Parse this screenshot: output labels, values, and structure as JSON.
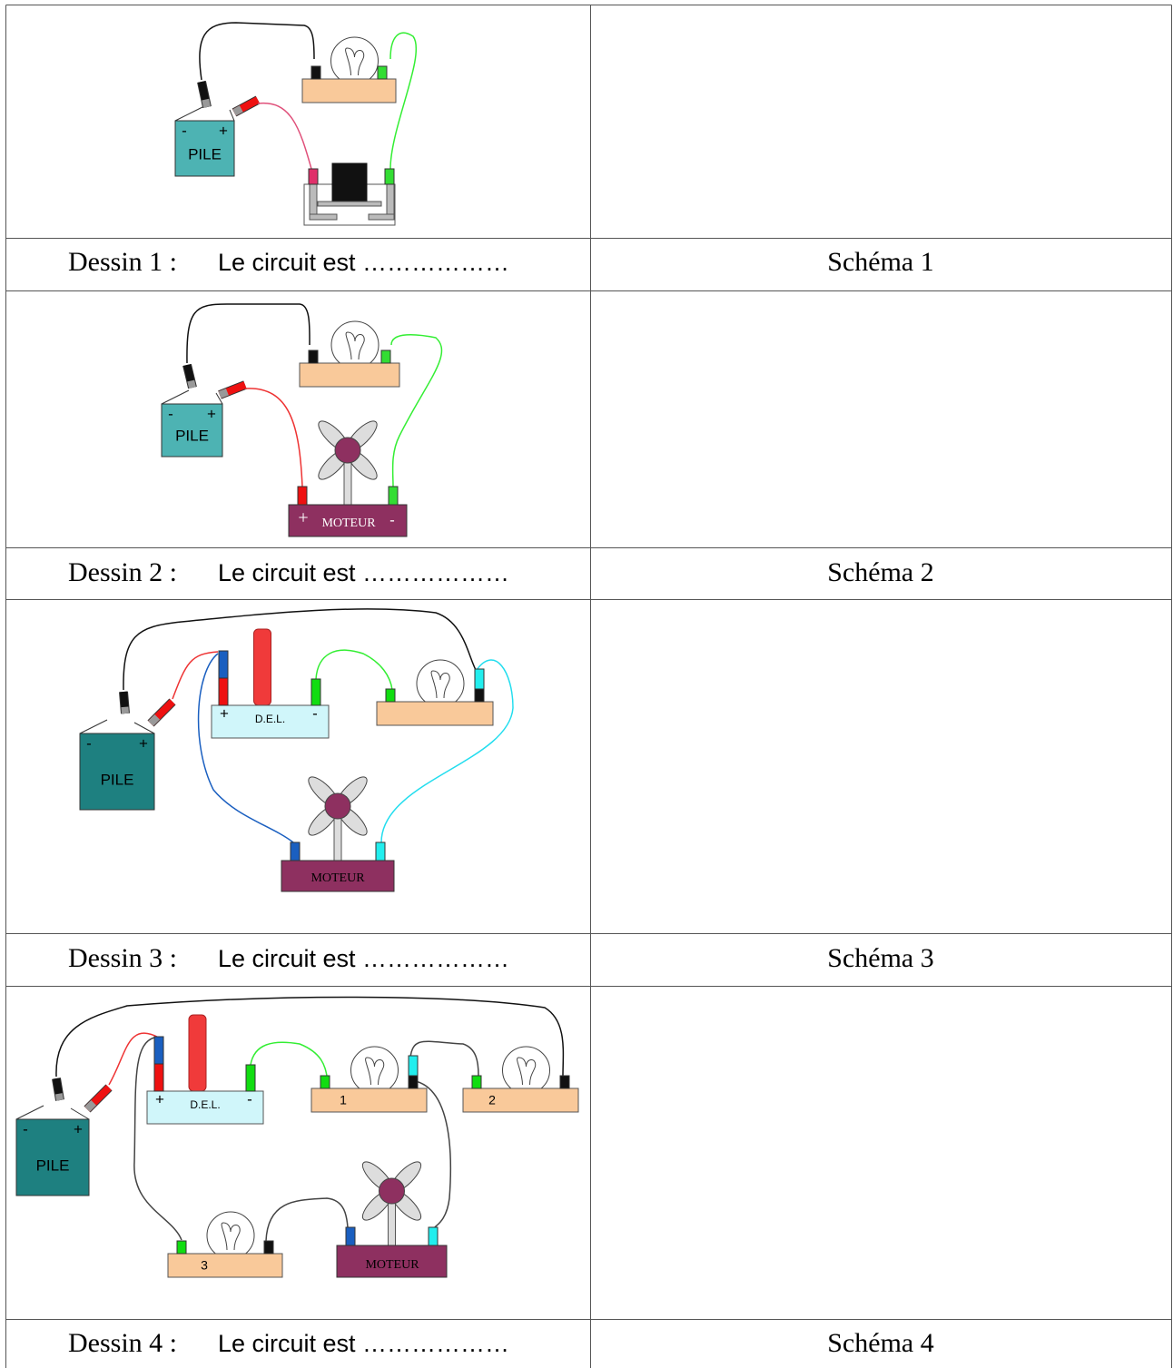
{
  "rows": [
    {
      "dessin": "Dessin 1 :",
      "text": "Le circuit est ………………",
      "schema": "Schéma 1",
      "drawing": {
        "pile": {
          "label": "PILE",
          "minus": "-",
          "plus": "+"
        }
      }
    },
    {
      "dessin": "Dessin 2 :",
      "text": "Le circuit est ………………",
      "schema": "Schéma 2",
      "drawing": {
        "pile": {
          "label": "PILE",
          "minus": "-",
          "plus": "+"
        },
        "motor": {
          "label": "MOTEUR",
          "plus": "+",
          "minus": "-"
        }
      }
    },
    {
      "dessin": "Dessin 3 :",
      "text": "Le circuit est ………………",
      "schema": "Schéma 3",
      "drawing": {
        "pile": {
          "label": "PILE",
          "minus": "-",
          "plus": "+"
        },
        "del": {
          "label": "D.E.L.",
          "plus": "+",
          "minus": "-"
        },
        "motor": {
          "label": "MOTEUR"
        }
      }
    },
    {
      "dessin": "Dessin 4 :",
      "text": "Le circuit est ………………",
      "schema": "Schéma 4",
      "drawing": {
        "pile": {
          "label": "PILE",
          "minus": "-",
          "plus": "+"
        },
        "del": {
          "label": "D.E.L.",
          "plus": "+",
          "minus": "-"
        },
        "lamps": [
          "1",
          "2",
          "3"
        ],
        "motor": {
          "label": "MOTEUR"
        }
      }
    }
  ]
}
